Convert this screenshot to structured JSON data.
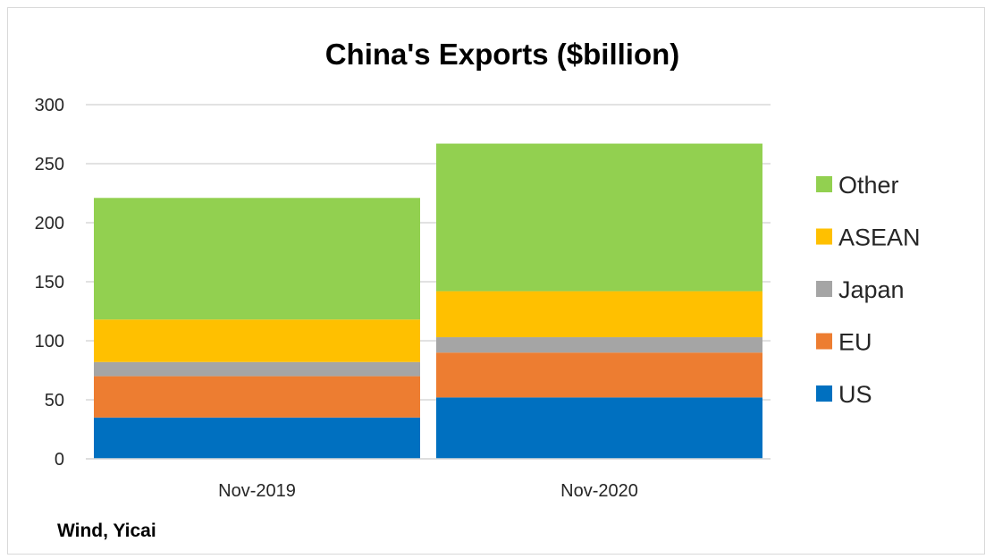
{
  "chart_data": {
    "type": "bar",
    "stacked": true,
    "title": "China's Exports ($billion)",
    "xlabel": "",
    "ylabel": "",
    "categories": [
      "Nov-2019",
      "Nov-2020"
    ],
    "ylim": [
      0,
      300
    ],
    "yticks": [
      0,
      50,
      100,
      150,
      200,
      250,
      300
    ],
    "grid": true,
    "legend_position": "right",
    "series": [
      {
        "name": "US",
        "values": [
          35,
          52
        ],
        "color": "#0070c0"
      },
      {
        "name": "EU",
        "values": [
          35,
          38
        ],
        "color": "#ed7d31"
      },
      {
        "name": "Japan",
        "values": [
          12,
          13
        ],
        "color": "#a5a5a5"
      },
      {
        "name": "ASEAN",
        "values": [
          36,
          39
        ],
        "color": "#ffc000"
      },
      {
        "name": "Other",
        "values": [
          103,
          125
        ],
        "color": "#92d050"
      }
    ],
    "source": "Wind, Yicai"
  }
}
